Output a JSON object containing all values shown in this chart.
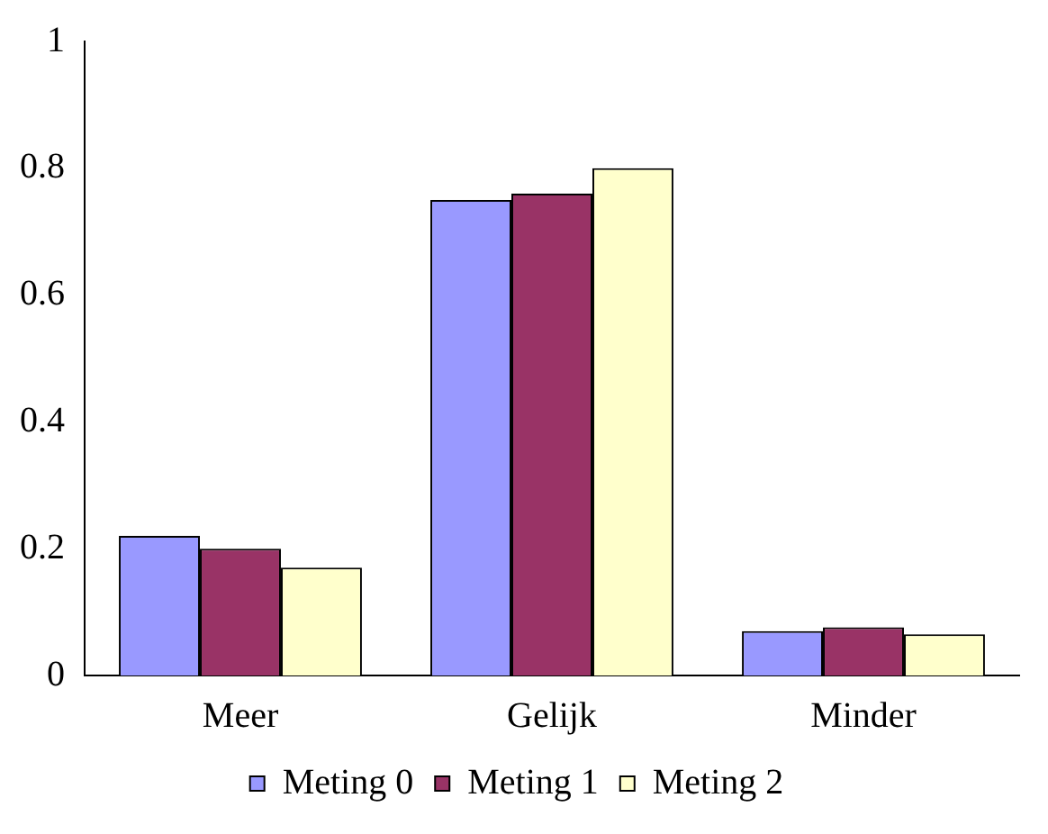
{
  "chart_data": {
    "type": "bar",
    "categories": [
      "Meer",
      "Gelijk",
      "Minder"
    ],
    "series": [
      {
        "name": "Meting 0",
        "color": "#9999ff",
        "values": [
          0.22,
          0.75,
          0.07
        ]
      },
      {
        "name": "Meting 1",
        "color": "#993366",
        "values": [
          0.2,
          0.76,
          0.076
        ]
      },
      {
        "name": "Meting 2",
        "color": "#ffffcc",
        "values": [
          0.17,
          0.8,
          0.065
        ]
      }
    ],
    "ylim": [
      0,
      1
    ],
    "yticks": [
      0,
      0.2,
      0.4,
      0.6,
      0.8,
      1
    ],
    "legend": "bottom"
  }
}
